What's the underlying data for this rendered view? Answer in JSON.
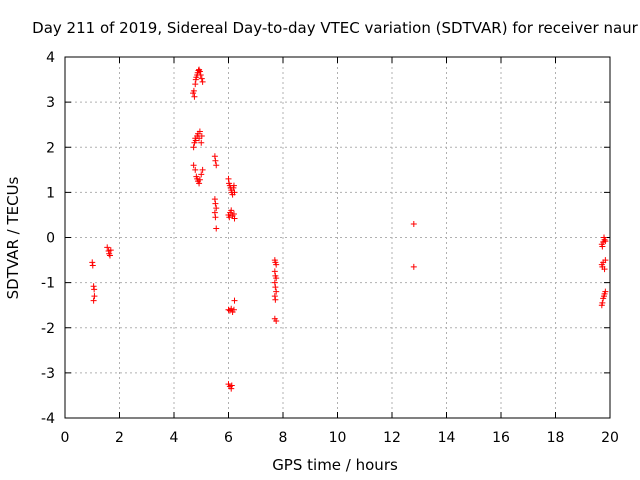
{
  "chart_data": {
    "type": "scatter",
    "title": "Day 211 of 2019, Sidereal Day-to-day VTEC variation (SDTVAR) for receiver naur",
    "xlabel": "GPS time / hours",
    "ylabel": "SDTVAR / TECUs",
    "xlim": [
      0,
      20
    ],
    "ylim": [
      -4,
      4
    ],
    "grid": true,
    "marker": "plus",
    "color": "#ff0000",
    "x_ticks": [
      "0",
      "2",
      "4",
      "6",
      "8",
      "10",
      "12",
      "14",
      "16",
      "18",
      "20"
    ],
    "y_ticks": [
      "4",
      "3",
      "2",
      "1",
      "0",
      "-1",
      "-2",
      "-3",
      "-4"
    ],
    "series": [
      {
        "name": "SDTVAR",
        "points": [
          [
            1.0,
            -0.55
          ],
          [
            1.02,
            -0.62
          ],
          [
            1.05,
            -1.08
          ],
          [
            1.07,
            -1.15
          ],
          [
            1.08,
            -1.3
          ],
          [
            1.05,
            -1.4
          ],
          [
            1.55,
            -0.22
          ],
          [
            1.6,
            -0.3
          ],
          [
            1.62,
            -0.36
          ],
          [
            1.65,
            -0.4
          ],
          [
            1.68,
            -0.28
          ],
          [
            4.7,
            3.2
          ],
          [
            4.73,
            3.25
          ],
          [
            4.75,
            3.12
          ],
          [
            4.78,
            3.4
          ],
          [
            4.8,
            3.5
          ],
          [
            4.82,
            3.55
          ],
          [
            4.85,
            3.6
          ],
          [
            4.87,
            3.65
          ],
          [
            4.9,
            3.7
          ],
          [
            4.92,
            3.72
          ],
          [
            4.95,
            3.68
          ],
          [
            4.98,
            3.6
          ],
          [
            5.02,
            3.52
          ],
          [
            5.05,
            3.45
          ],
          [
            4.72,
            2.0
          ],
          [
            4.75,
            2.1
          ],
          [
            4.78,
            2.2
          ],
          [
            4.8,
            2.15
          ],
          [
            4.85,
            2.25
          ],
          [
            4.88,
            2.3
          ],
          [
            4.92,
            2.2
          ],
          [
            4.95,
            2.35
          ],
          [
            5.0,
            2.1
          ],
          [
            5.02,
            2.25
          ],
          [
            4.72,
            1.6
          ],
          [
            4.78,
            1.5
          ],
          [
            4.82,
            1.35
          ],
          [
            4.85,
            1.3
          ],
          [
            4.88,
            1.25
          ],
          [
            4.92,
            1.2
          ],
          [
            4.95,
            1.28
          ],
          [
            5.0,
            1.4
          ],
          [
            5.05,
            1.5
          ],
          [
            5.5,
            1.8
          ],
          [
            5.52,
            1.7
          ],
          [
            5.55,
            1.6
          ],
          [
            5.5,
            0.85
          ],
          [
            5.52,
            0.75
          ],
          [
            5.55,
            0.65
          ],
          [
            5.5,
            0.55
          ],
          [
            5.52,
            0.45
          ],
          [
            5.55,
            0.2
          ],
          [
            6.0,
            1.3
          ],
          [
            6.02,
            1.2
          ],
          [
            6.05,
            1.15
          ],
          [
            6.08,
            1.1
          ],
          [
            6.1,
            1.05
          ],
          [
            6.12,
            1.0
          ],
          [
            6.15,
            0.95
          ],
          [
            6.18,
            1.1
          ],
          [
            6.2,
            1.15
          ],
          [
            6.22,
            1.0
          ],
          [
            6.0,
            0.5
          ],
          [
            6.03,
            0.45
          ],
          [
            6.06,
            0.55
          ],
          [
            6.1,
            0.6
          ],
          [
            6.15,
            0.48
          ],
          [
            6.2,
            0.52
          ],
          [
            6.22,
            0.42
          ],
          [
            6.0,
            -1.6
          ],
          [
            6.05,
            -1.62
          ],
          [
            6.1,
            -1.58
          ],
          [
            6.15,
            -1.65
          ],
          [
            6.2,
            -1.6
          ],
          [
            6.22,
            -1.4
          ],
          [
            6.0,
            -3.25
          ],
          [
            6.05,
            -3.3
          ],
          [
            6.1,
            -3.35
          ],
          [
            6.12,
            -3.28
          ],
          [
            7.7,
            -0.5
          ],
          [
            7.72,
            -0.55
          ],
          [
            7.75,
            -0.6
          ],
          [
            7.7,
            -0.75
          ],
          [
            7.72,
            -0.85
          ],
          [
            7.75,
            -0.9
          ],
          [
            7.7,
            -1.0
          ],
          [
            7.72,
            -1.1
          ],
          [
            7.75,
            -1.2
          ],
          [
            7.7,
            -1.3
          ],
          [
            7.72,
            -1.38
          ],
          [
            7.7,
            -1.8
          ],
          [
            7.75,
            -1.85
          ],
          [
            12.8,
            0.3
          ],
          [
            12.8,
            -0.65
          ],
          [
            19.7,
            -0.15
          ],
          [
            19.72,
            -0.2
          ],
          [
            19.75,
            -0.1
          ],
          [
            19.78,
            0.0
          ],
          [
            19.8,
            -0.05
          ],
          [
            19.83,
            -0.08
          ],
          [
            19.7,
            -0.6
          ],
          [
            19.72,
            -0.65
          ],
          [
            19.75,
            -0.55
          ],
          [
            19.8,
            -0.7
          ],
          [
            19.83,
            -0.5
          ],
          [
            19.7,
            -1.5
          ],
          [
            19.72,
            -1.45
          ],
          [
            19.75,
            -1.35
          ],
          [
            19.78,
            -1.3
          ],
          [
            19.8,
            -1.25
          ],
          [
            19.83,
            -1.2
          ]
        ]
      }
    ]
  }
}
